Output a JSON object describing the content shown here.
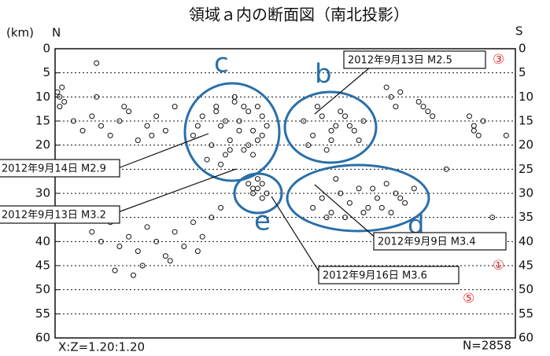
{
  "chart_data": {
    "type": "scatter",
    "title": "領域ａ内の断面図（南北投影）",
    "y_unit": "(km)",
    "north": "N",
    "south": "S",
    "scale_note": "X:Z=1.20:1.20",
    "count_note": "N=2858",
    "ylim": [
      0,
      60
    ],
    "yticks": [
      0,
      5,
      10,
      15,
      20,
      25,
      30,
      35,
      40,
      45,
      50,
      55,
      60
    ],
    "xlim": [
      0,
      100
    ],
    "grid": true,
    "color": "#111111",
    "x": [
      30,
      32,
      34,
      35,
      36,
      37,
      38,
      39,
      40,
      41,
      42,
      43,
      44,
      45,
      46,
      33,
      36,
      39,
      42,
      45,
      31,
      35,
      40,
      44,
      38,
      41,
      37,
      43,
      54,
      56,
      58,
      60,
      62,
      64,
      66,
      55,
      59,
      63,
      57,
      61,
      65,
      60,
      67,
      56,
      58,
      60,
      62,
      64,
      66,
      68,
      70,
      72,
      74,
      76,
      78,
      59,
      63,
      67,
      71,
      75,
      61,
      69,
      73,
      42,
      43,
      44,
      45,
      46,
      44,
      43,
      45,
      0.5,
      1,
      1.5,
      2,
      1,
      4,
      6,
      8,
      10,
      12,
      14,
      16,
      18,
      20,
      22,
      24,
      26,
      9,
      15,
      21,
      8,
      10,
      12,
      14,
      16,
      18,
      20,
      22,
      24,
      26,
      28,
      30,
      32,
      34,
      36,
      13,
      19,
      25,
      31,
      17,
      72,
      73,
      74,
      75,
      79,
      80,
      81,
      82,
      90,
      91,
      92,
      93,
      91,
      9,
      98,
      85,
      95,
      97
    ],
    "values": [
      18,
      14,
      20,
      12,
      16,
      22,
      19,
      11,
      15,
      21,
      13,
      17,
      12,
      18,
      16,
      23,
      24,
      10,
      20,
      14,
      16,
      13,
      17,
      19,
      21,
      12,
      15,
      22,
      15,
      18,
      14,
      17,
      13,
      16,
      19,
      20,
      21,
      14,
      12,
      16,
      17,
      19,
      15,
      33,
      31,
      34,
      30,
      32,
      29,
      33,
      31,
      28,
      30,
      32,
      29,
      35,
      35,
      34,
      33,
      31,
      27,
      29,
      34,
      28,
      30,
      29,
      28,
      30,
      27,
      29,
      31,
      9,
      10,
      8,
      11,
      12,
      15,
      17,
      14,
      16,
      18,
      15,
      13,
      19,
      16,
      14,
      17,
      12,
      10,
      12,
      18,
      38,
      40,
      36,
      41,
      39,
      42,
      37,
      40,
      43,
      38,
      41,
      36,
      39,
      35,
      33,
      46,
      45,
      44,
      42,
      47,
      8,
      10,
      12,
      9,
      11,
      12,
      13,
      14,
      14,
      16,
      18,
      15,
      17,
      3,
      18,
      25,
      35,
      40
    ],
    "annotations": [
      "2012年9月13日 M2.5",
      "2012年9月14日 M2.9",
      "2012年9月13日 M3.2",
      "2012年9月9日 M3.4",
      "2012年9月16日 M3.6"
    ],
    "cluster_labels": [
      "c",
      "b",
      "d",
      "e"
    ],
    "markers": [
      "③",
      "①",
      "⑤"
    ]
  }
}
